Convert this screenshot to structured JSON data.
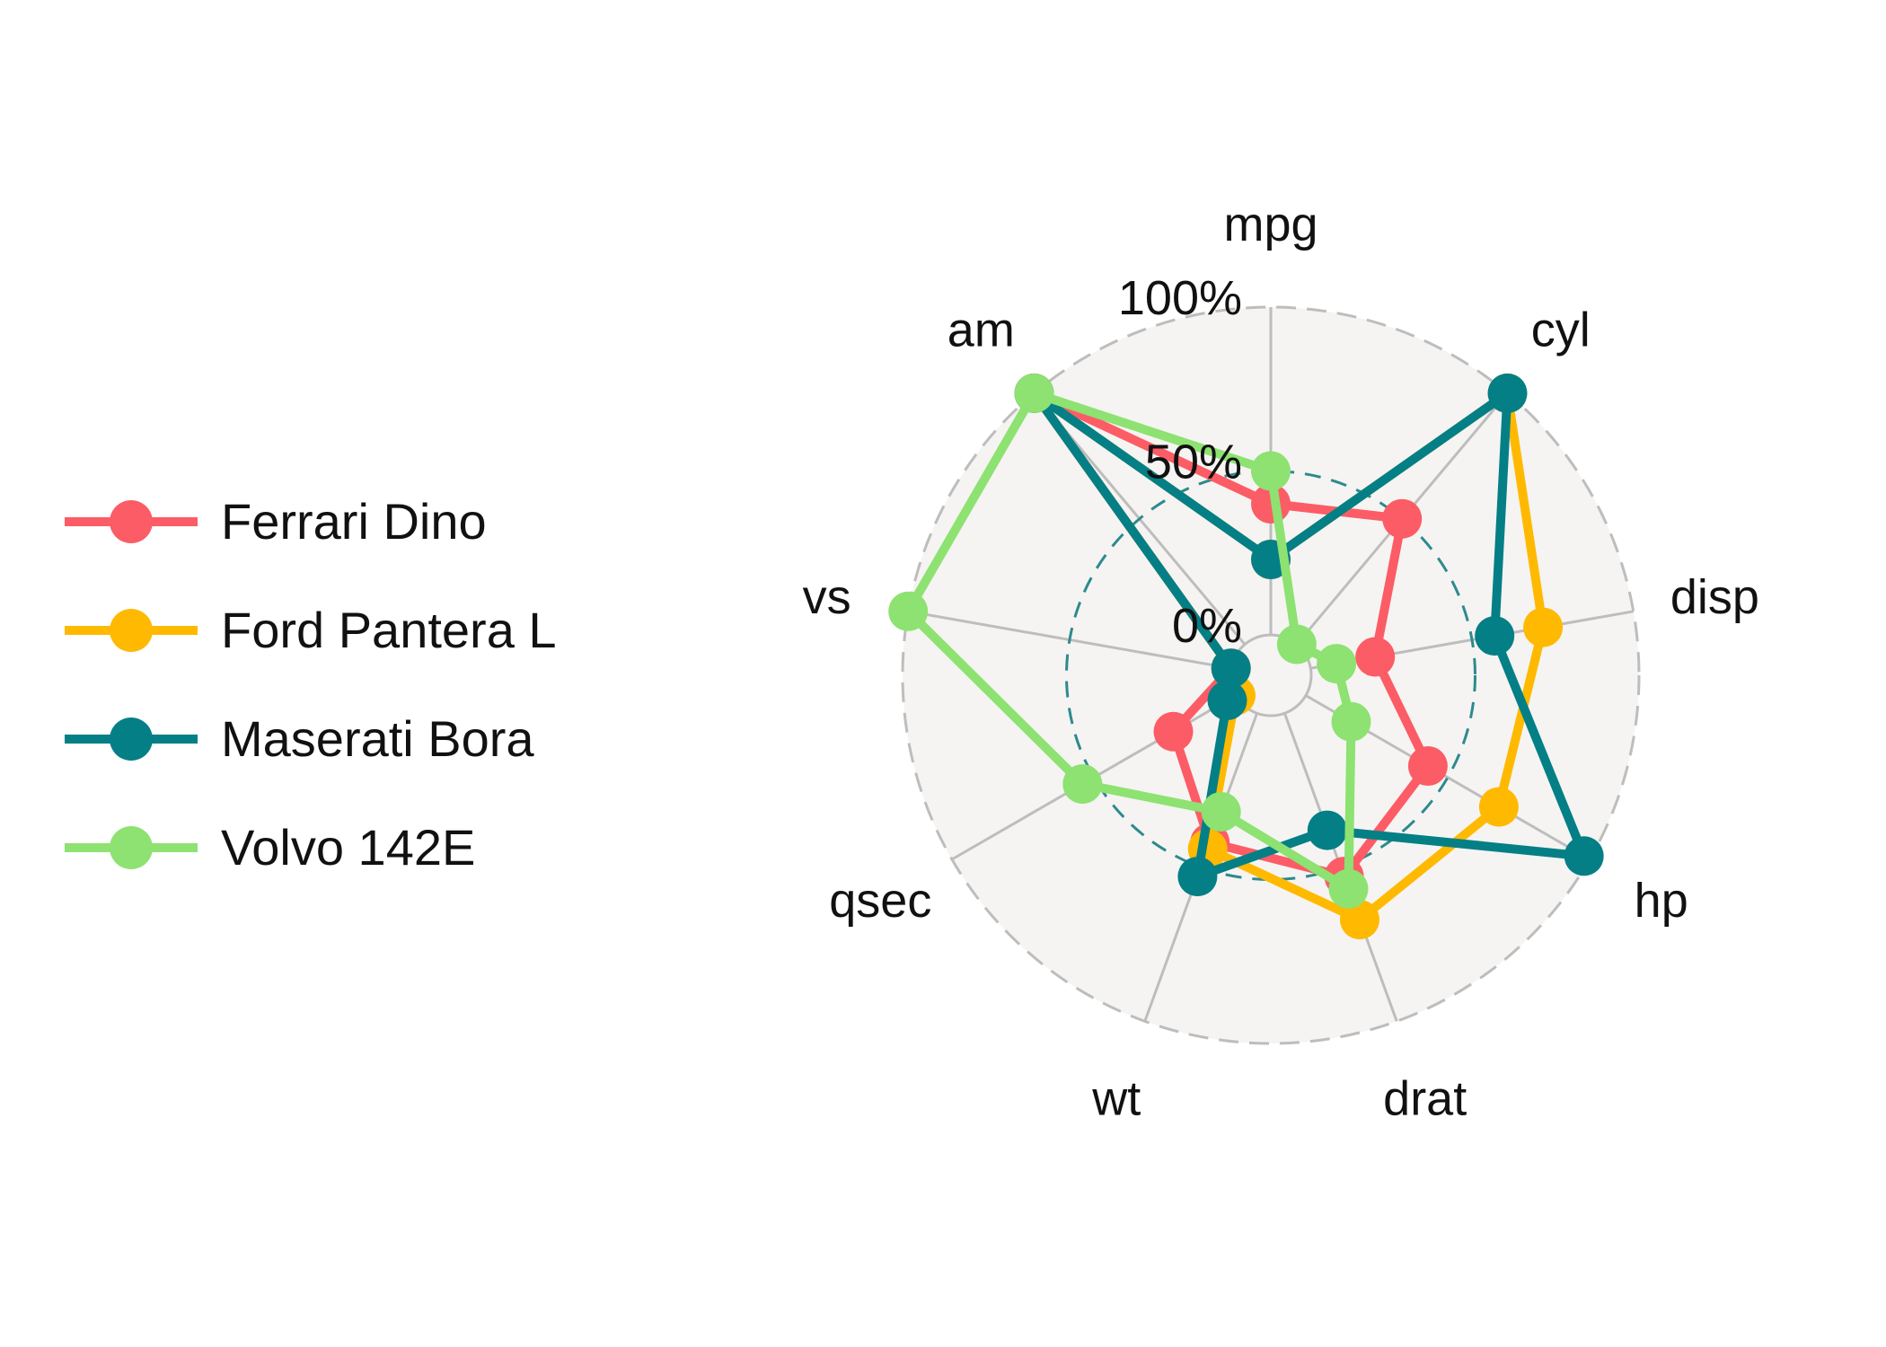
{
  "chart_data": {
    "type": "radar",
    "axes": [
      "mpg",
      "cyl",
      "disp",
      "hp",
      "drat",
      "wt",
      "qsec",
      "vs",
      "am"
    ],
    "ring_labels": [
      "0%",
      "50%",
      "100%"
    ],
    "ylim": [
      0,
      1
    ],
    "grid": true,
    "legend_position": "left",
    "series": [
      {
        "name": "Ferrari Dino",
        "color": "#FC5C65",
        "values": [
          0.4,
          0.5,
          0.2,
          0.43,
          0.53,
          0.42,
          0.22,
          0.0,
          1.0
        ]
      },
      {
        "name": "Ford Pantera L",
        "color": "#FFB900",
        "values": [
          0.23,
          1.0,
          0.72,
          0.68,
          0.67,
          0.44,
          0.0,
          0.0,
          1.0
        ]
      },
      {
        "name": "Maserati Bora",
        "color": "#047F86",
        "values": [
          0.23,
          1.0,
          0.57,
          0.98,
          0.38,
          0.53,
          0.03,
          0.0,
          1.0
        ]
      },
      {
        "name": "Volvo 142E",
        "color": "#8DE271",
        "values": [
          0.5,
          0.0,
          0.08,
          0.16,
          0.57,
          0.32,
          0.54,
          1.0,
          1.0
        ]
      }
    ]
  }
}
